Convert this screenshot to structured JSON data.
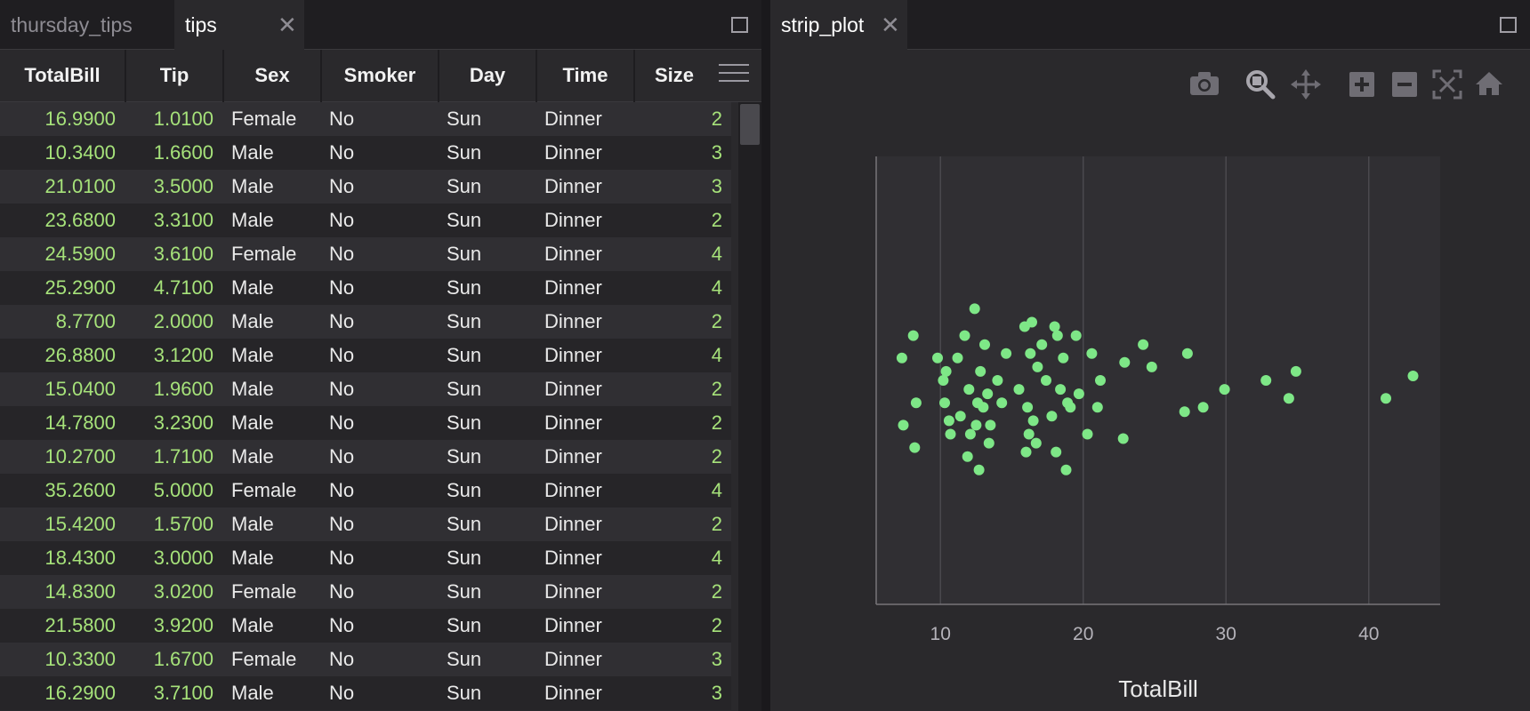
{
  "left_tabs": [
    {
      "label": "thursday_tips"
    },
    {
      "label": "tips"
    }
  ],
  "right_tabs": [
    {
      "label": "strip_plot"
    }
  ],
  "grid": {
    "columns": [
      "TotalBill",
      "Tip",
      "Sex",
      "Smoker",
      "Day",
      "Time",
      "Size"
    ],
    "rows": [
      [
        "16.9900",
        "1.0100",
        "Female",
        "No",
        "Sun",
        "Dinner",
        "2"
      ],
      [
        "10.3400",
        "1.6600",
        "Male",
        "No",
        "Sun",
        "Dinner",
        "3"
      ],
      [
        "21.0100",
        "3.5000",
        "Male",
        "No",
        "Sun",
        "Dinner",
        "3"
      ],
      [
        "23.6800",
        "3.3100",
        "Male",
        "No",
        "Sun",
        "Dinner",
        "2"
      ],
      [
        "24.5900",
        "3.6100",
        "Female",
        "No",
        "Sun",
        "Dinner",
        "4"
      ],
      [
        "25.2900",
        "4.7100",
        "Male",
        "No",
        "Sun",
        "Dinner",
        "4"
      ],
      [
        "8.7700",
        "2.0000",
        "Male",
        "No",
        "Sun",
        "Dinner",
        "2"
      ],
      [
        "26.8800",
        "3.1200",
        "Male",
        "No",
        "Sun",
        "Dinner",
        "4"
      ],
      [
        "15.0400",
        "1.9600",
        "Male",
        "No",
        "Sun",
        "Dinner",
        "2"
      ],
      [
        "14.7800",
        "3.2300",
        "Male",
        "No",
        "Sun",
        "Dinner",
        "2"
      ],
      [
        "10.2700",
        "1.7100",
        "Male",
        "No",
        "Sun",
        "Dinner",
        "2"
      ],
      [
        "35.2600",
        "5.0000",
        "Female",
        "No",
        "Sun",
        "Dinner",
        "4"
      ],
      [
        "15.4200",
        "1.5700",
        "Male",
        "No",
        "Sun",
        "Dinner",
        "2"
      ],
      [
        "18.4300",
        "3.0000",
        "Male",
        "No",
        "Sun",
        "Dinner",
        "4"
      ],
      [
        "14.8300",
        "3.0200",
        "Female",
        "No",
        "Sun",
        "Dinner",
        "2"
      ],
      [
        "21.5800",
        "3.9200",
        "Male",
        "No",
        "Sun",
        "Dinner",
        "2"
      ],
      [
        "10.3300",
        "1.6700",
        "Female",
        "No",
        "Sun",
        "Dinner",
        "3"
      ],
      [
        "16.2900",
        "3.7100",
        "Male",
        "No",
        "Sun",
        "Dinner",
        "3"
      ]
    ]
  },
  "toolbar": {
    "icons": [
      "camera-icon",
      "zoom-icon",
      "pan-icon",
      "zoom-in-icon",
      "zoom-out-icon",
      "autoscale-icon",
      "home-icon"
    ]
  },
  "colors": {
    "accent_green": "#7ee787",
    "number_green": "#a6e27a",
    "background": "#2a292c"
  },
  "chart_data": {
    "type": "scatter",
    "xlabel": "TotalBill",
    "xlim": [
      5.5,
      45
    ],
    "xticks": [
      10,
      20,
      30,
      40
    ],
    "grid": true,
    "points": [
      [
        7.3,
        0.55
      ],
      [
        8.1,
        0.6
      ],
      [
        7.4,
        0.4
      ],
      [
        8.3,
        0.45
      ],
      [
        8.2,
        0.35
      ],
      [
        9.8,
        0.55
      ],
      [
        10.2,
        0.5
      ],
      [
        10.3,
        0.45
      ],
      [
        10.4,
        0.52
      ],
      [
        10.6,
        0.41
      ],
      [
        10.7,
        0.38
      ],
      [
        11.2,
        0.55
      ],
      [
        11.4,
        0.42
      ],
      [
        11.7,
        0.6
      ],
      [
        11.9,
        0.33
      ],
      [
        12.0,
        0.48
      ],
      [
        12.1,
        0.38
      ],
      [
        12.4,
        0.66
      ],
      [
        12.5,
        0.4
      ],
      [
        12.6,
        0.45
      ],
      [
        12.7,
        0.3
      ],
      [
        12.8,
        0.52
      ],
      [
        13.0,
        0.44
      ],
      [
        13.1,
        0.58
      ],
      [
        13.3,
        0.47
      ],
      [
        13.4,
        0.36
      ],
      [
        13.5,
        0.4
      ],
      [
        14.0,
        0.5
      ],
      [
        14.3,
        0.45
      ],
      [
        14.6,
        0.56
      ],
      [
        15.5,
        0.48
      ],
      [
        15.9,
        0.62
      ],
      [
        16.0,
        0.34
      ],
      [
        16.1,
        0.44
      ],
      [
        16.2,
        0.38
      ],
      [
        16.3,
        0.56
      ],
      [
        16.4,
        0.63
      ],
      [
        16.5,
        0.41
      ],
      [
        16.7,
        0.36
      ],
      [
        16.8,
        0.53
      ],
      [
        17.1,
        0.58
      ],
      [
        17.4,
        0.5
      ],
      [
        17.8,
        0.42
      ],
      [
        18.0,
        0.62
      ],
      [
        18.1,
        0.34
      ],
      [
        18.2,
        0.6
      ],
      [
        18.4,
        0.48
      ],
      [
        18.6,
        0.55
      ],
      [
        18.8,
        0.3
      ],
      [
        18.9,
        0.45
      ],
      [
        19.1,
        0.44
      ],
      [
        19.5,
        0.6
      ],
      [
        19.7,
        0.47
      ],
      [
        20.3,
        0.38
      ],
      [
        20.6,
        0.56
      ],
      [
        21.0,
        0.44
      ],
      [
        21.2,
        0.5
      ],
      [
        22.8,
        0.37
      ],
      [
        22.9,
        0.54
      ],
      [
        24.2,
        0.58
      ],
      [
        24.8,
        0.53
      ],
      [
        27.1,
        0.43
      ],
      [
        27.3,
        0.56
      ],
      [
        28.4,
        0.44
      ],
      [
        29.9,
        0.48
      ],
      [
        32.8,
        0.5
      ],
      [
        34.4,
        0.46
      ],
      [
        34.9,
        0.52
      ],
      [
        41.2,
        0.46
      ],
      [
        43.1,
        0.51
      ]
    ]
  }
}
